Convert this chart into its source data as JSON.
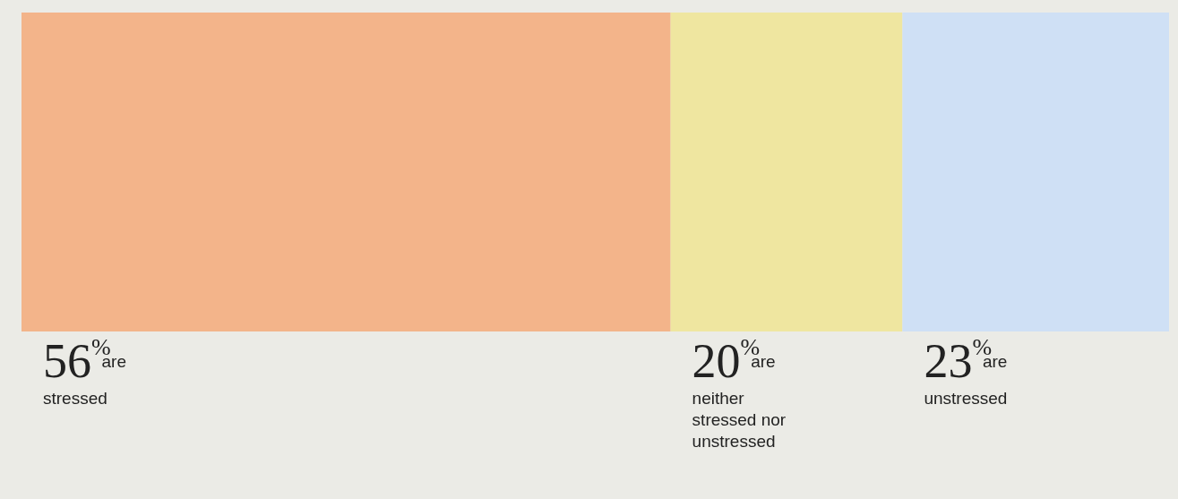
{
  "chart_data": {
    "type": "bar",
    "stacked": true,
    "orientation": "horizontal",
    "categories": [
      null
    ],
    "series": [
      {
        "name": "are stressed",
        "color": "#f3b48a",
        "values": [
          56
        ],
        "value_labels": [
          "56%"
        ]
      },
      {
        "name": "are neither stressed nor unstressed",
        "color": "#efe6a0",
        "values": [
          20
        ],
        "value_labels": [
          "20%"
        ]
      },
      {
        "name": "are unstressed",
        "color": "#cfe0f5",
        "values": [
          23
        ],
        "value_labels": [
          "23%"
        ]
      }
    ]
  }
}
